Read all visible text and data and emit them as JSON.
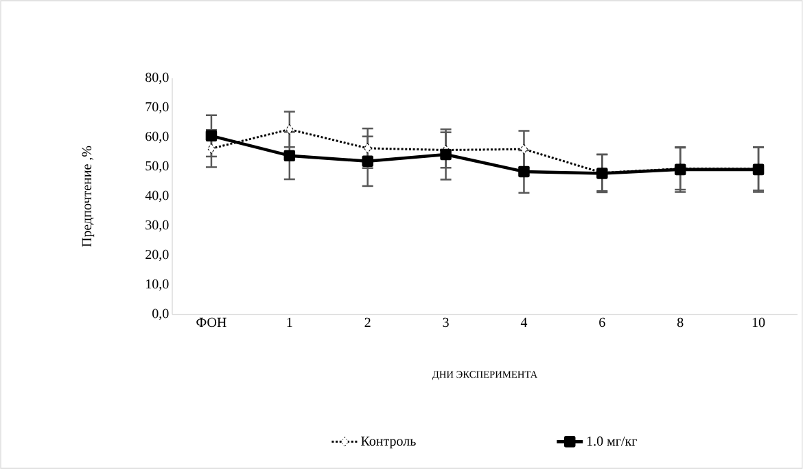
{
  "chart_data": {
    "type": "line",
    "xlabel": "ДНИ ЭКСПЕРИМЕНТА",
    "ylabel": "Предпочтение ,%",
    "categories": [
      "ФОН",
      "1",
      "2",
      "3",
      "4",
      "6",
      "8",
      "10"
    ],
    "series": [
      {
        "name": "Контроль",
        "color": "#000000",
        "marker": "diamond",
        "line_style": "dotted",
        "values": [
          56.2,
          62.7,
          56.3,
          55.7,
          56.0,
          48.0,
          49.4,
          49.3
        ],
        "errors": [
          6.3,
          6.0,
          6.7,
          6.0,
          6.2,
          6.2,
          7.1,
          7.3
        ]
      },
      {
        "name": "1.0 мг/кг",
        "color": "#000000",
        "marker": "square",
        "line_style": "solid",
        "values": [
          60.5,
          53.8,
          51.9,
          54.2,
          48.4,
          47.8,
          49.1,
          49.1
        ],
        "errors": [
          7.0,
          8.0,
          8.4,
          8.5,
          7.2,
          6.4,
          7.6,
          7.6
        ]
      }
    ],
    "ylim": [
      0,
      80
    ],
    "yticks": [
      {
        "value": 0,
        "label": "0,0"
      },
      {
        "value": 10,
        "label": "10,0"
      },
      {
        "value": 20,
        "label": "20,0"
      },
      {
        "value": 30,
        "label": "30,0"
      },
      {
        "value": 40,
        "label": "40,0"
      },
      {
        "value": 50,
        "label": "50,0"
      },
      {
        "value": 60,
        "label": "60,0"
      },
      {
        "value": 70,
        "label": "70,0"
      },
      {
        "value": 80,
        "label": "80,0"
      }
    ],
    "grid": false,
    "legend": "bottom"
  }
}
